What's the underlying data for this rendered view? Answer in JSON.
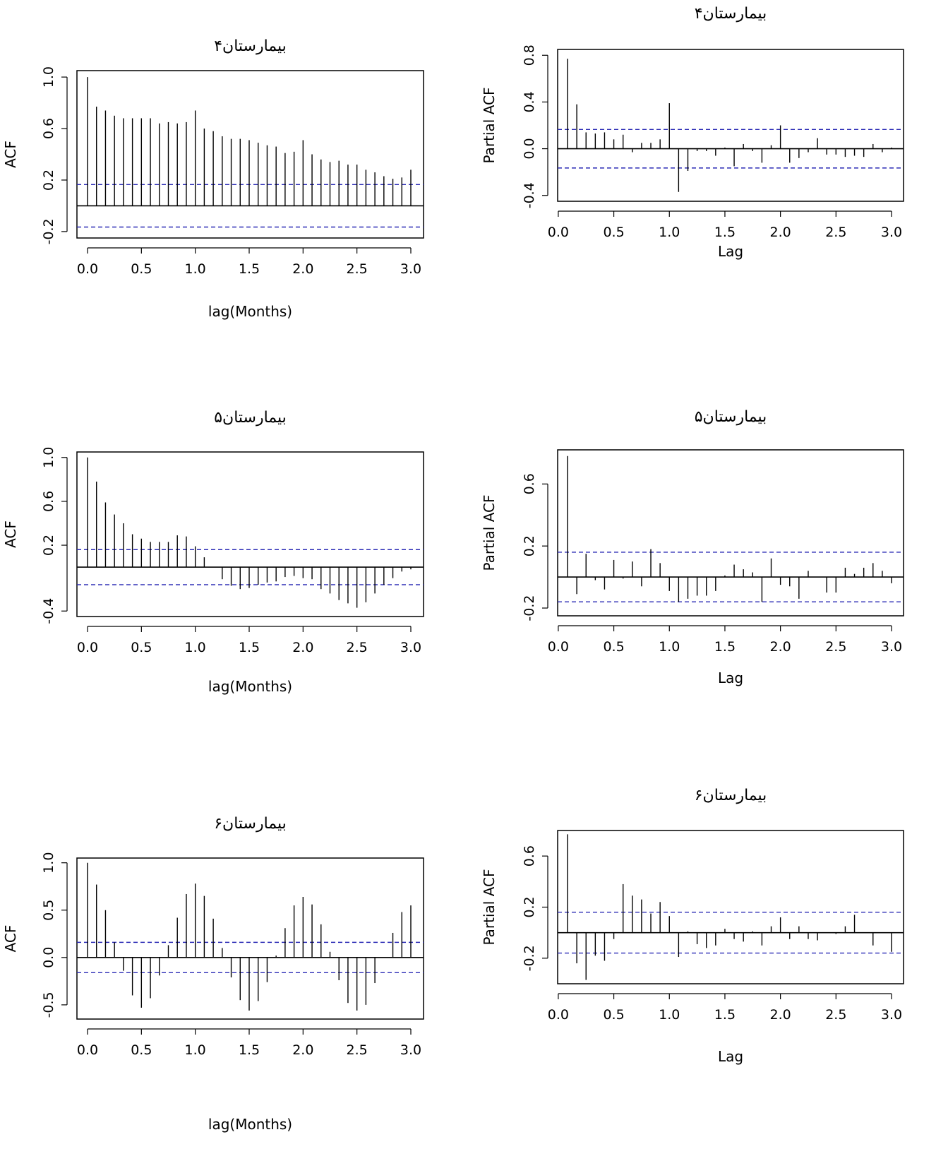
{
  "style": {
    "ci_color": "#2b2bb5",
    "bar_color": "#000000"
  },
  "chart_data": [
    {
      "id": "acf4",
      "type": "bar",
      "title": "بیمارستان۴",
      "xlabel": "lag(Months)",
      "ylabel": "ACF",
      "xlim": [
        0,
        3
      ],
      "ylim": [
        -0.25,
        1.05
      ],
      "xticks": [
        "0.0",
        "0.5",
        "1.0",
        "1.5",
        "2.0",
        "2.5",
        "3.0"
      ],
      "yticks": [
        "-0.2",
        "0.2",
        "0.6",
        "1.0"
      ],
      "ci": 0.165,
      "values": [
        1.0,
        0.77,
        0.74,
        0.7,
        0.68,
        0.68,
        0.68,
        0.68,
        0.64,
        0.65,
        0.64,
        0.65,
        0.74,
        0.6,
        0.58,
        0.54,
        0.52,
        0.52,
        0.51,
        0.49,
        0.47,
        0.46,
        0.41,
        0.42,
        0.51,
        0.4,
        0.36,
        0.34,
        0.35,
        0.32,
        0.32,
        0.28,
        0.26,
        0.23,
        0.21,
        0.22,
        0.28
      ]
    },
    {
      "id": "pacf4",
      "type": "bar",
      "title": "بیمارستان۴",
      "xlabel": "Lag",
      "ylabel": "Partial ACF",
      "xlim": [
        0,
        3
      ],
      "ylim": [
        -0.45,
        0.85
      ],
      "xticks": [
        "0.0",
        "0.5",
        "1.0",
        "1.5",
        "2.0",
        "2.5",
        "3.0"
      ],
      "yticks": [
        "-0.4",
        "0.0",
        "0.4",
        "0.8"
      ],
      "ci": 0.165,
      "values": [
        0.77,
        0.38,
        0.14,
        0.13,
        0.14,
        0.08,
        0.12,
        -0.03,
        0.05,
        0.05,
        0.08,
        0.39,
        -0.37,
        -0.19,
        -0.02,
        -0.02,
        -0.06,
        0.01,
        -0.15,
        0.04,
        -0.02,
        -0.12,
        0.03,
        0.2,
        -0.12,
        -0.08,
        -0.03,
        0.09,
        -0.05,
        -0.05,
        -0.07,
        -0.06,
        -0.07,
        0.04,
        -0.03,
        0.01
      ]
    },
    {
      "id": "acf5",
      "type": "bar",
      "title": "بیمارستان۵",
      "xlabel": "lag(Months)",
      "ylabel": "ACF",
      "xlim": [
        0,
        3
      ],
      "ylim": [
        -0.45,
        1.05
      ],
      "xticks": [
        "0.0",
        "0.5",
        "1.0",
        "1.5",
        "2.0",
        "2.5",
        "3.0"
      ],
      "yticks": [
        "-0.4",
        "0.2",
        "0.6",
        "1.0"
      ],
      "ci": 0.16,
      "values": [
        1.0,
        0.78,
        0.59,
        0.48,
        0.4,
        0.3,
        0.26,
        0.23,
        0.23,
        0.23,
        0.29,
        0.28,
        0.19,
        0.09,
        0.0,
        -0.11,
        -0.17,
        -0.2,
        -0.19,
        -0.16,
        -0.14,
        -0.13,
        -0.09,
        -0.08,
        -0.1,
        -0.11,
        -0.2,
        -0.24,
        -0.3,
        -0.33,
        -0.37,
        -0.32,
        -0.24,
        -0.16,
        -0.1,
        -0.04,
        -0.02
      ]
    },
    {
      "id": "pacf5",
      "type": "bar",
      "title": "بیمارستان۵",
      "xlabel": "Lag",
      "ylabel": "Partial ACF",
      "xlim": [
        0,
        3
      ],
      "ylim": [
        -0.25,
        0.82
      ],
      "xticks": [
        "0.0",
        "0.5",
        "1.0",
        "1.5",
        "2.0",
        "2.5",
        "3.0"
      ],
      "yticks": [
        "-0.2",
        "0.2",
        "0.6"
      ],
      "ci": 0.16,
      "values": [
        0.78,
        -0.11,
        0.15,
        -0.02,
        -0.08,
        0.11,
        -0.01,
        0.1,
        -0.06,
        0.18,
        0.09,
        -0.09,
        -0.16,
        -0.14,
        -0.12,
        -0.12,
        -0.09,
        0.01,
        0.08,
        0.05,
        0.03,
        -0.16,
        0.12,
        -0.05,
        -0.06,
        -0.14,
        0.04,
        0.0,
        -0.1,
        -0.1,
        0.06,
        0.02,
        0.06,
        0.09,
        0.04,
        -0.04
      ]
    },
    {
      "id": "acf6",
      "type": "bar",
      "title": "بیمارستان۶",
      "xlabel": "lag(Months)",
      "ylabel": "ACF",
      "xlim": [
        0,
        3
      ],
      "ylim": [
        -0.65,
        1.05
      ],
      "xticks": [
        "0.0",
        "0.5",
        "1.0",
        "1.5",
        "2.0",
        "2.5",
        "3.0"
      ],
      "yticks": [
        "-0.5",
        "0.0",
        "0.5",
        "1.0"
      ],
      "ci": 0.16,
      "values": [
        1.0,
        0.77,
        0.5,
        0.16,
        -0.14,
        -0.4,
        -0.53,
        -0.43,
        -0.19,
        0.13,
        0.42,
        0.67,
        0.78,
        0.65,
        0.41,
        0.1,
        -0.21,
        -0.45,
        -0.56,
        -0.46,
        -0.26,
        0.02,
        0.31,
        0.55,
        0.64,
        0.56,
        0.35,
        0.06,
        -0.24,
        -0.48,
        -0.56,
        -0.5,
        -0.27,
        0.0,
        0.26,
        0.48,
        0.55
      ]
    },
    {
      "id": "pacf6",
      "type": "bar",
      "title": "بیمارستان۶",
      "xlabel": "Lag",
      "ylabel": "Partial ACF",
      "xlim": [
        0,
        3
      ],
      "ylim": [
        -0.4,
        0.8
      ],
      "xticks": [
        "0.0",
        "0.5",
        "1.0",
        "1.5",
        "2.0",
        "2.5",
        "3.0"
      ],
      "yticks": [
        "-0.2",
        "0.2",
        "0.6"
      ],
      "ci": 0.16,
      "values": [
        0.77,
        -0.24,
        -0.37,
        -0.18,
        -0.22,
        -0.05,
        0.38,
        0.29,
        0.26,
        0.15,
        0.24,
        0.13,
        -0.19,
        0.01,
        -0.09,
        -0.12,
        -0.1,
        0.03,
        -0.05,
        -0.07,
        0.01,
        -0.1,
        0.05,
        0.12,
        -0.05,
        0.05,
        -0.05,
        -0.06,
        0.0,
        -0.01,
        0.05,
        0.14,
        0.0,
        -0.1,
        0.0,
        -0.15
      ]
    }
  ]
}
